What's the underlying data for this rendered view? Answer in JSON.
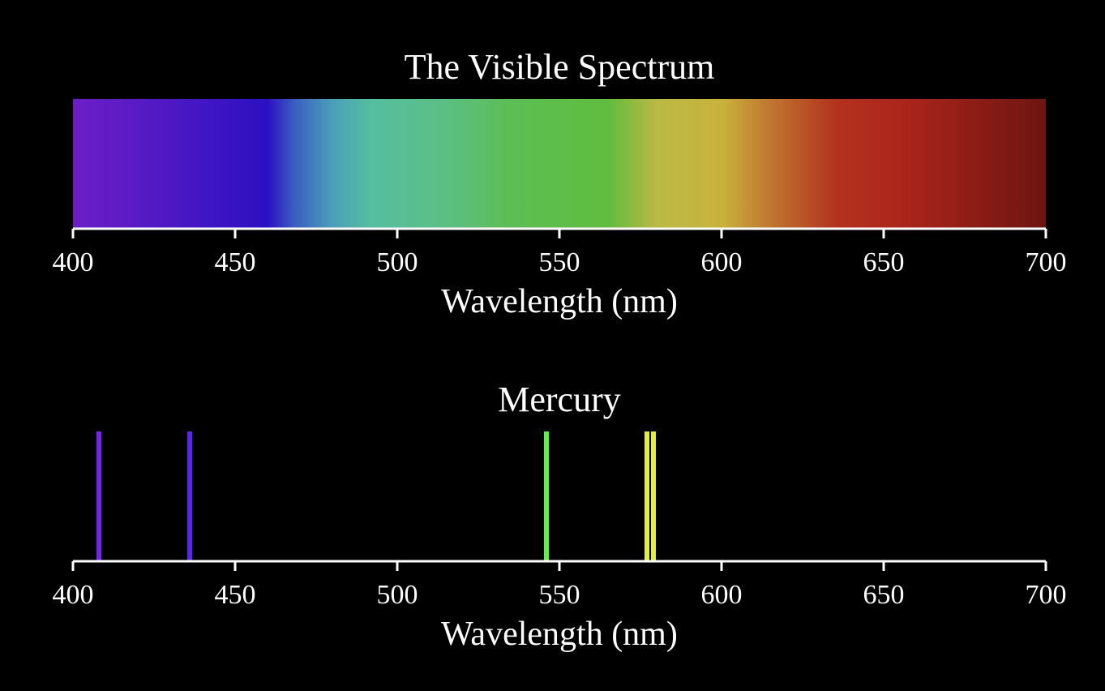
{
  "chart_data": [
    {
      "type": "heatmap",
      "title": "The Visible Spectrum",
      "xlabel": "Wavelength (nm)",
      "xlim": [
        400,
        700
      ],
      "xticks": [
        "400",
        "450",
        "500",
        "550",
        "600",
        "650",
        "700"
      ],
      "color_stops": [
        {
          "x": 400,
          "color": "#6d1fc6"
        },
        {
          "x": 430,
          "color": "#4d18c4"
        },
        {
          "x": 460,
          "color": "#2a10c2"
        },
        {
          "x": 468,
          "color": "#3a5cc0"
        },
        {
          "x": 480,
          "color": "#4a9fb9"
        },
        {
          "x": 492,
          "color": "#55bea0"
        },
        {
          "x": 515,
          "color": "#5bbf84"
        },
        {
          "x": 535,
          "color": "#5cbe55"
        },
        {
          "x": 565,
          "color": "#60bd3f"
        },
        {
          "x": 580,
          "color": "#b9b944"
        },
        {
          "x": 600,
          "color": "#c9b23c"
        },
        {
          "x": 615,
          "color": "#c07730"
        },
        {
          "x": 635,
          "color": "#b2331f"
        },
        {
          "x": 655,
          "color": "#ad251b"
        },
        {
          "x": 700,
          "color": "#6d1510"
        }
      ]
    },
    {
      "type": "bar",
      "title": "Mercury",
      "xlabel": "Wavelength (nm)",
      "xlim": [
        400,
        700
      ],
      "xticks": [
        "400",
        "450",
        "500",
        "550",
        "600",
        "650",
        "700"
      ],
      "lines": [
        {
          "x": 408,
          "color": "#7a23f0"
        },
        {
          "x": 436,
          "color": "#5c24f0"
        },
        {
          "x": 546,
          "color": "#5df53b"
        },
        {
          "x": 577,
          "color": "#e3ef3a"
        },
        {
          "x": 579,
          "color": "#e3ef3a"
        }
      ]
    }
  ]
}
